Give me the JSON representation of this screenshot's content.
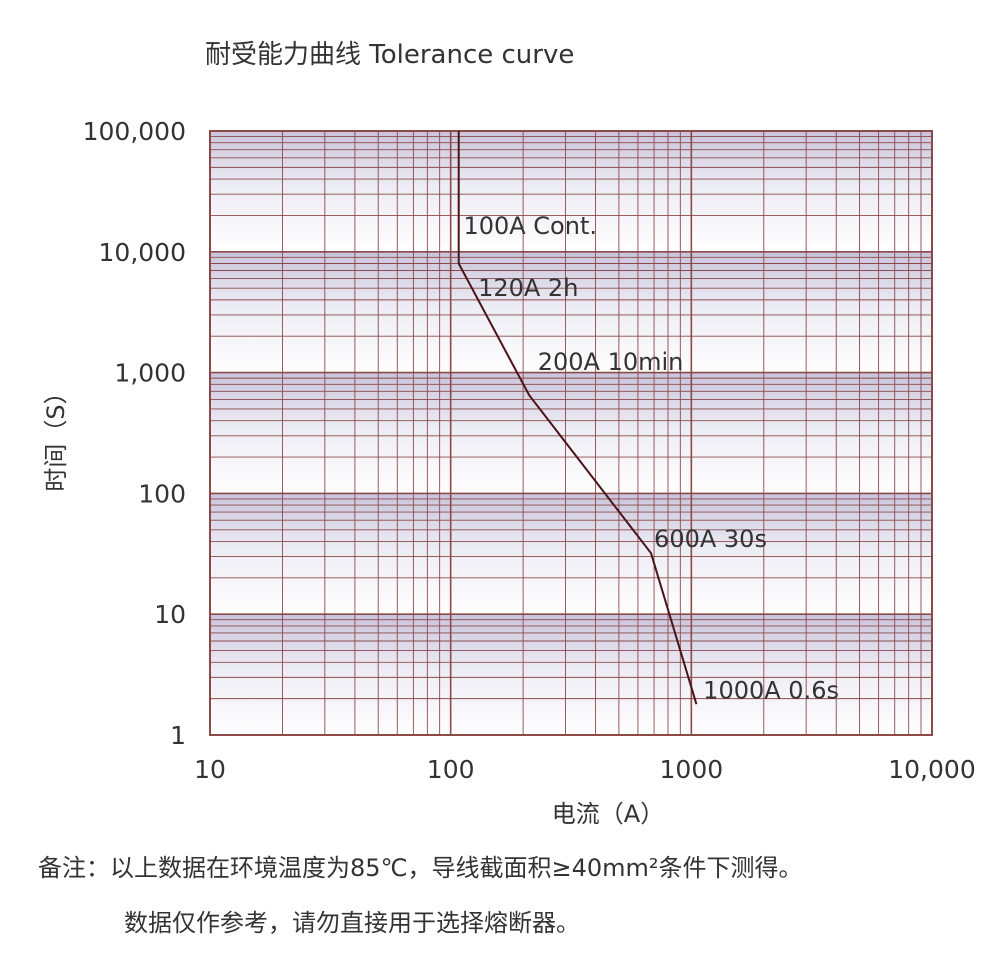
{
  "title": "耐受能力曲线   Tolerance curve",
  "chart_data": {
    "type": "line",
    "title": "耐受能力曲线   Tolerance curve",
    "xlabel": "电流（A）",
    "ylabel": "时间（S）",
    "x_scale": "log",
    "y_scale": "log",
    "xlim": [
      10,
      10000
    ],
    "ylim": [
      1,
      100000
    ],
    "x_ticks": [
      "10",
      "100",
      "1000",
      "10,000"
    ],
    "y_ticks": [
      "1",
      "10",
      "100",
      "1,000",
      "10,000",
      "100,000"
    ],
    "grid": true,
    "series": [
      {
        "x": [
          108,
          108,
          212,
          680,
          1050
        ],
        "y": [
          100000,
          8000,
          650,
          32,
          1.8
        ],
        "color": "#4a1418"
      }
    ],
    "annotations": [
      {
        "text": "100A Cont.",
        "x": 113,
        "y": 14000
      },
      {
        "text": "120A 2h",
        "x": 130,
        "y": 4300
      },
      {
        "text": "200A 10min",
        "x": 230,
        "y": 1050
      },
      {
        "text": "600A 30s",
        "x": 700,
        "y": 36
      },
      {
        "text": "1000A 0.6s",
        "x": 1120,
        "y": 2.0
      }
    ]
  },
  "notes": {
    "line1": "备注：以上数据在环境温度为85℃，导线截面积≥40mm²条件下测得。",
    "line2": "数据仅作参考，请勿直接用于选择熔断器。"
  },
  "colors": {
    "grid_line": "#8b4a4a",
    "band_dark": "#c9c4dc",
    "band_light": "#ececf4",
    "curve": "#4a1418"
  }
}
